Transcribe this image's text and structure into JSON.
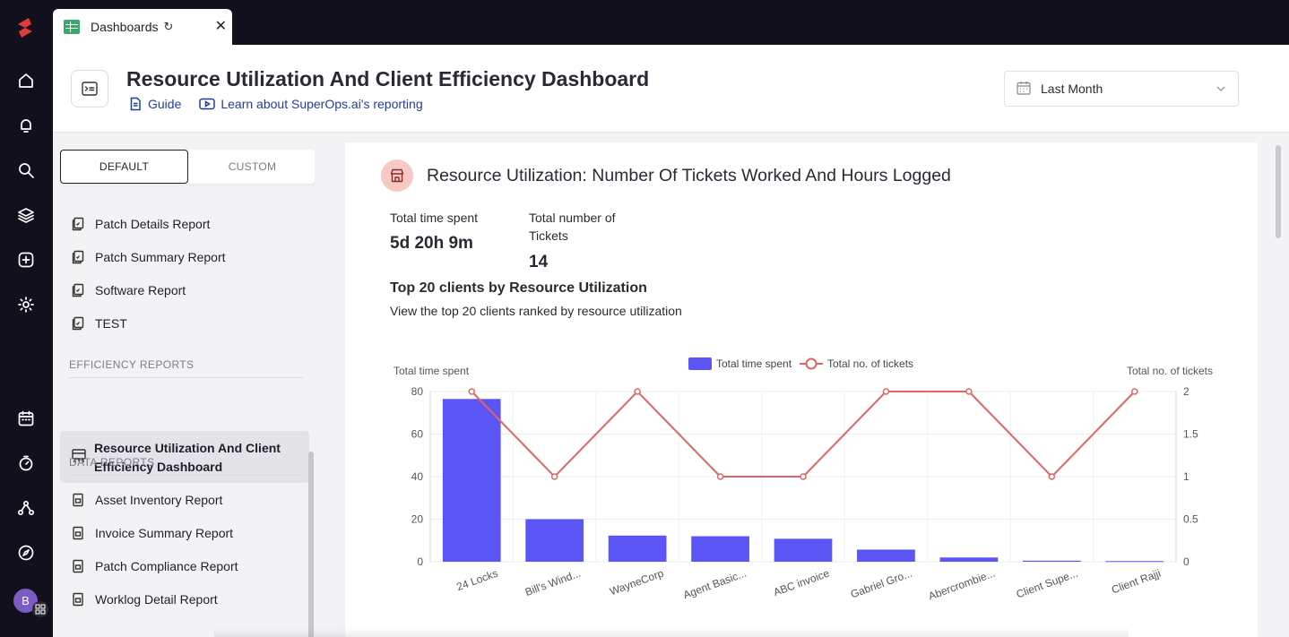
{
  "tab": {
    "label": "Dashboards"
  },
  "header": {
    "title": "Resource Utilization And Client Efficiency Dashboard",
    "guide_link": "Guide",
    "learn_link": "Learn about SuperOps.ai's reporting",
    "date_range": "Last Month"
  },
  "sidebar": {
    "seg_default": "DEFAULT",
    "seg_custom": "CUSTOM",
    "top_reports": [
      "Patch Details Report",
      "Patch Summary Report",
      "Software Report",
      "TEST"
    ],
    "efficiency_title": "EFFICIENCY REPORTS",
    "active_report": "Resource Utilization And Client Efficiency Dashboard",
    "data_title": "DATA REPORTS",
    "data_reports": [
      "Asset Inventory Report",
      "Invoice Summary Report",
      "Patch Compliance Report",
      "Worklog Detail Report"
    ]
  },
  "user": {
    "initial": "B"
  },
  "panel": {
    "title": "Resource Utilization: Number Of Tickets Worked And Hours Logged",
    "stat1_label": "Total time spent",
    "stat1_value": "5d 20h 9m",
    "stat2_label_line1": "Total number of",
    "stat2_label_line2": "Tickets",
    "stat2_value": "14",
    "subheading": "Top 20 clients by Resource Utilization",
    "description": "View the top 20 clients ranked by resource utilization"
  },
  "colors": {
    "bar": "#5b55f5",
    "line": "#e06666",
    "accent_link": "#1f3e9c"
  },
  "chart_data": {
    "type": "bar",
    "categories": [
      "24 Locks",
      "Bill's Wind...",
      "WayneCorp",
      "Agent Basic...",
      "ABC invoice",
      "Gabriel Gro...",
      "Abercrombie...",
      "Client Supe...",
      "Client Rajji"
    ],
    "series": [
      {
        "name": "Total time spent",
        "type": "bar",
        "axis": "left",
        "values": [
          76.5,
          20,
          12.3,
          12,
          10.8,
          5.7,
          2,
          0.5,
          0.3
        ]
      },
      {
        "name": "Total no. of tickets",
        "type": "line",
        "axis": "right",
        "values": [
          2,
          1,
          2,
          1,
          1,
          2,
          2,
          1,
          2
        ]
      }
    ],
    "ylabel_left": "Total time spent",
    "ylabel_right": "Total no. of tickets",
    "ylim_left": [
      0,
      80
    ],
    "ylim_right": [
      0,
      2
    ],
    "yticks_left": [
      "0",
      "20",
      "40",
      "60",
      "80"
    ],
    "yticks_right": [
      "0",
      "0.5",
      "1",
      "1.5",
      "2"
    ],
    "legend_position": "top-center",
    "grid": true
  }
}
